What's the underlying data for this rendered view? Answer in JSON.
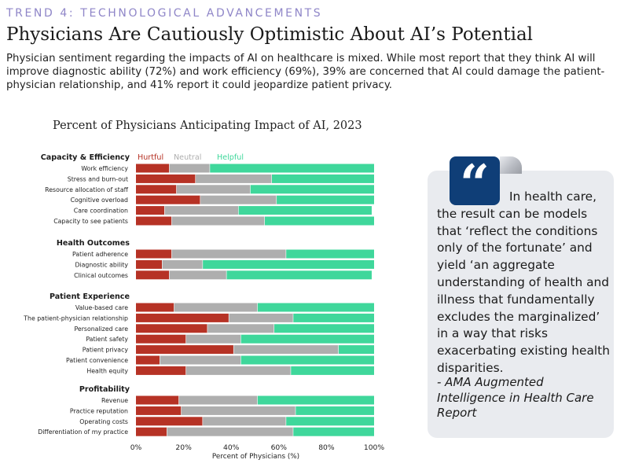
{
  "header": {
    "eyebrow": "TREND 4: TECHNOLOGICAL ADVANCEMENTS",
    "title": "Physicians Are Cautiously Optimistic About AI’s Potential",
    "intro": "Physician sentiment regarding the impacts of AI on healthcare is mixed. While most report that they think AI will improve diagnostic ability (72%) and work efficiency (69%), 39% are concerned that AI could damage the patient-physician relationship, and 41% report it could jeopardize patient privacy."
  },
  "quote": {
    "mark": "“",
    "text": "In health care, the result can be models that ‘reflect the conditions only of the fortunate’ and yield ‘an aggregate understanding of health and illness that fundamentally excludes the marginalized’ in a way that risks exacerbating existing health disparities.",
    "attribution": "- AMA Augmented Intelligence in Health Care Report"
  },
  "chart_data": {
    "type": "bar",
    "orientation": "horizontal",
    "stacked": true,
    "title": "Percent of Physicians Anticipating Impact of AI, 2023",
    "xlabel": "Percent of Physicians (%)",
    "ylabel": "",
    "xlim": [
      0,
      100
    ],
    "xticks": [
      "0%",
      "20%",
      "40%",
      "60%",
      "80%",
      "100%"
    ],
    "legend": [
      "Hurtful",
      "Neutral",
      "Helpful"
    ],
    "colors": {
      "Hurtful": "#b63225",
      "Neutral": "#aeaeae",
      "Helpful": "#3fd79b"
    },
    "groups": [
      {
        "name": "Capacity & Efficiency",
        "items": [
          {
            "label": "Work efficiency",
            "values": [
              14,
              17,
              69
            ]
          },
          {
            "label": "Stress and burn-out",
            "values": [
              25,
              32,
              43
            ]
          },
          {
            "label": "Resource allocation of staff",
            "values": [
              17,
              31,
              52
            ]
          },
          {
            "label": "Cognitive overload",
            "values": [
              27,
              32,
              41
            ]
          },
          {
            "label": "Care coordination",
            "values": [
              12,
              31,
              56
            ]
          },
          {
            "label": "Capacity to see patients",
            "values": [
              15,
              39,
              46
            ]
          }
        ]
      },
      {
        "name": "Health Outcomes",
        "items": [
          {
            "label": "Patient adherence",
            "values": [
              15,
              48,
              37
            ]
          },
          {
            "label": "Diagnostic ability",
            "values": [
              11,
              17,
              72
            ]
          },
          {
            "label": "Clinical outcomes",
            "values": [
              14,
              24,
              61
            ]
          }
        ]
      },
      {
        "name": "Patient Experience",
        "items": [
          {
            "label": "Value-based care",
            "values": [
              16,
              35,
              49
            ]
          },
          {
            "label": "The patient-physician relationship",
            "values": [
              39,
              27,
              34
            ]
          },
          {
            "label": "Personalized care",
            "values": [
              30,
              28,
              42
            ]
          },
          {
            "label": "Patient safety",
            "values": [
              21,
              23,
              56
            ]
          },
          {
            "label": "Patient privacy",
            "values": [
              41,
              44,
              15
            ]
          },
          {
            "label": "Patient convenience",
            "values": [
              10,
              34,
              56
            ]
          },
          {
            "label": "Health equity",
            "values": [
              21,
              44,
              35
            ]
          }
        ]
      },
      {
        "name": "Profitability",
        "items": [
          {
            "label": "Revenue",
            "values": [
              18,
              33,
              49
            ]
          },
          {
            "label": "Practice reputation",
            "values": [
              19,
              48,
              33
            ]
          },
          {
            "label": "Operating costs",
            "values": [
              28,
              35,
              37
            ]
          },
          {
            "label": "Differentiation of my practice",
            "values": [
              13,
              53,
              34
            ]
          }
        ]
      }
    ]
  }
}
